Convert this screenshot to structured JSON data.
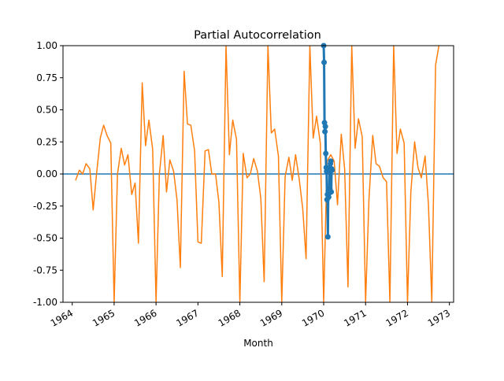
{
  "chart_data": {
    "type": "line",
    "title": "Partial Autocorrelation",
    "xlabel": "Month",
    "ylabel": "",
    "ylim": [
      -1.0,
      1.0
    ],
    "xlim": [
      1963.78,
      1973.1
    ],
    "yticks": [
      "-1.00",
      "-0.75",
      "-0.50",
      "-0.25",
      "0.00",
      "0.25",
      "0.50",
      "0.75",
      "1.00"
    ],
    "xticks": [
      "1964",
      "1965",
      "1966",
      "1967",
      "1968",
      "1969",
      "1970",
      "1971",
      "1972",
      "1973"
    ],
    "xtick_rotation_deg": 30,
    "grid": false,
    "legend": "none",
    "zero_line": {
      "y": 0.0,
      "color": "#1f77b4"
    },
    "colors": {
      "pacf": "#1f77b4",
      "series": "#ff7f0e"
    },
    "series": [
      {
        "role": "series",
        "x": [
          1964.08,
          1964.17,
          1964.25,
          1964.33,
          1964.42,
          1964.5,
          1964.58,
          1964.67,
          1964.75,
          1964.83,
          1964.92,
          1965.0,
          1965.08,
          1965.17,
          1965.25,
          1965.33,
          1965.42,
          1965.5,
          1965.58,
          1965.67,
          1965.75,
          1965.83,
          1965.92,
          1966.0,
          1966.08,
          1966.17,
          1966.25,
          1966.33,
          1966.42,
          1966.5,
          1966.58,
          1966.67,
          1966.75,
          1966.83,
          1966.92,
          1967.0,
          1967.08,
          1967.17,
          1967.25,
          1967.33,
          1967.42,
          1967.5,
          1967.58,
          1967.67,
          1967.75,
          1967.83,
          1967.92,
          1968.0,
          1968.08,
          1968.17,
          1968.25,
          1968.33,
          1968.42,
          1968.5,
          1968.58,
          1968.67,
          1968.75,
          1968.83,
          1968.92,
          1969.0,
          1969.08,
          1969.17,
          1969.25,
          1969.33,
          1969.42,
          1969.5,
          1969.58,
          1969.67,
          1969.75,
          1969.83,
          1969.92,
          1970.0,
          1970.08,
          1970.17,
          1970.25,
          1970.33,
          1970.42,
          1970.5,
          1970.58,
          1970.67,
          1970.75,
          1970.83,
          1970.92,
          1971.0,
          1971.08,
          1971.17,
          1971.25,
          1971.33,
          1971.42,
          1971.5,
          1971.58,
          1971.67,
          1971.75,
          1971.83,
          1971.92,
          1972.0,
          1972.08,
          1972.17,
          1972.25,
          1972.33,
          1972.42,
          1972.5,
          1972.58,
          1972.67,
          1972.75
        ],
        "y": [
          -0.05,
          0.03,
          0.0,
          0.08,
          0.04,
          -0.28,
          0.0,
          0.28,
          0.38,
          0.3,
          0.24,
          -1.0,
          0.0,
          0.2,
          0.07,
          0.15,
          -0.16,
          -0.07,
          -0.54,
          0.71,
          0.22,
          0.42,
          0.19,
          -1.0,
          0.0,
          0.3,
          -0.14,
          0.11,
          0.02,
          -0.2,
          -0.73,
          0.8,
          0.39,
          0.38,
          0.18,
          -0.53,
          -0.54,
          0.18,
          0.19,
          0.0,
          0.0,
          -0.22,
          -0.8,
          1.0,
          0.15,
          0.42,
          0.27,
          -1.0,
          0.16,
          -0.03,
          0.0,
          0.12,
          0.02,
          -0.19,
          -0.84,
          1.0,
          0.32,
          0.35,
          0.14,
          -1.0,
          -0.02,
          0.13,
          -0.05,
          0.15,
          -0.05,
          -0.27,
          -0.66,
          1.0,
          0.28,
          0.45,
          0.24,
          -1.0,
          0.1,
          0.15,
          0.1,
          -0.24,
          0.31,
          0.04,
          -0.88,
          1.0,
          0.2,
          0.43,
          0.29,
          -1.0,
          -0.2,
          0.3,
          0.08,
          0.06,
          -0.03,
          -0.06,
          -1.0,
          1.0,
          0.16,
          0.35,
          0.24,
          -1.0,
          -0.14,
          0.25,
          0.05,
          -0.03,
          0.14,
          -0.24,
          -1.0,
          0.85,
          1.0
        ]
      },
      {
        "role": "pacf",
        "x": [
          1970.0,
          1970.01,
          1970.02,
          1970.03,
          1970.04,
          1970.05,
          1970.06,
          1970.07,
          1970.08,
          1970.09,
          1970.1,
          1970.11,
          1970.12,
          1970.13,
          1970.14,
          1970.15,
          1970.16,
          1970.17,
          1970.18,
          1970.19,
          1970.2
        ],
        "y": [
          1.0,
          0.87,
          0.4,
          0.33,
          0.37,
          0.16,
          0.05,
          0.02,
          -0.2,
          -0.16,
          -0.49,
          -0.13,
          -0.18,
          -0.15,
          0.05,
          -0.12,
          0.08,
          0.1,
          -0.14,
          0.04,
          0.03
        ]
      }
    ]
  }
}
